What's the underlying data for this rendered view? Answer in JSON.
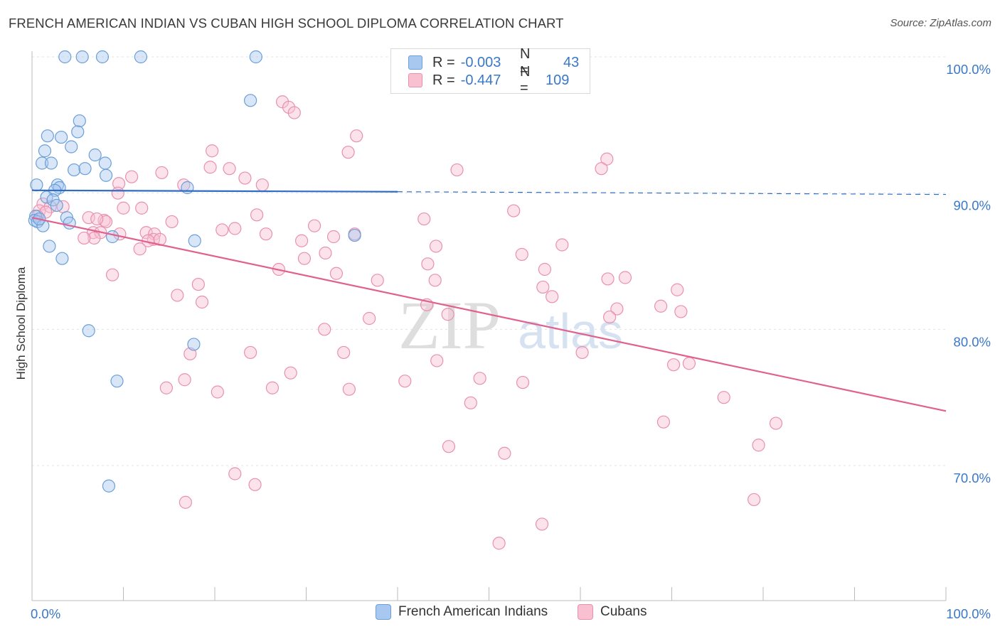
{
  "header": {
    "title": "FRENCH AMERICAN INDIAN VS CUBAN HIGH SCHOOL DIPLOMA CORRELATION CHART",
    "source": "Source: ZipAtlas.com"
  },
  "legend_top": {
    "rows": [
      {
        "r_label": "R =",
        "r_value": "-0.003",
        "n_label": "N =",
        "n_value": "43",
        "color": "#a9c8f0",
        "border": "#6a9fd8"
      },
      {
        "r_label": "R =",
        "r_value": "-0.447",
        "n_label": "N =",
        "n_value": "109",
        "color": "#f9c0d2",
        "border": "#e890b0"
      }
    ]
  },
  "legend_bottom": {
    "items": [
      {
        "label": "French American Indians",
        "color": "#a9c8f0",
        "border": "#6a9fd8"
      },
      {
        "label": "Cubans",
        "color": "#f9c0d2",
        "border": "#e890b0"
      }
    ]
  },
  "watermark": {
    "zip": "ZIP",
    "atlas": "atlas"
  },
  "chart_data": {
    "type": "scatter",
    "title": "FRENCH AMERICAN INDIAN VS CUBAN HIGH SCHOOL DIPLOMA CORRELATION CHART",
    "xlabel": "",
    "ylabel": "High School Diploma",
    "xlim": [
      0,
      100
    ],
    "ylim": [
      61,
      101.5
    ],
    "x_tick_labels": [
      "0.0%",
      "100.0%"
    ],
    "y_ticks": [
      70,
      80,
      90,
      100
    ],
    "y_tick_labels": [
      "70.0%",
      "80.0%",
      "90.0%",
      "100.0%"
    ],
    "grid": true,
    "series": [
      {
        "name": "French American Indians",
        "color": "#6a9fd8",
        "fill": "#a9c8f0",
        "points": [
          [
            3.6,
            100.0
          ],
          [
            5.5,
            100.0
          ],
          [
            7.7,
            100.0
          ],
          [
            11.9,
            100.0
          ],
          [
            24.5,
            100.0
          ],
          [
            23.9,
            96.8
          ],
          [
            5.2,
            95.3
          ],
          [
            5.0,
            94.5
          ],
          [
            1.7,
            94.2
          ],
          [
            3.2,
            94.1
          ],
          [
            4.3,
            93.4
          ],
          [
            1.4,
            93.1
          ],
          [
            6.9,
            92.8
          ],
          [
            1.1,
            92.2
          ],
          [
            2.1,
            92.2
          ],
          [
            8.0,
            92.2
          ],
          [
            4.6,
            91.7
          ],
          [
            5.8,
            91.8
          ],
          [
            8.1,
            91.3
          ],
          [
            0.5,
            90.6
          ],
          [
            2.8,
            90.6
          ],
          [
            3.0,
            90.4
          ],
          [
            17.0,
            90.4
          ],
          [
            2.5,
            90.2
          ],
          [
            1.6,
            89.7
          ],
          [
            2.3,
            89.5
          ],
          [
            2.7,
            89.1
          ],
          [
            0.4,
            88.3
          ],
          [
            0.3,
            88.0
          ],
          [
            0.6,
            87.9
          ],
          [
            3.8,
            88.2
          ],
          [
            4.1,
            87.8
          ],
          [
            1.2,
            87.6
          ],
          [
            8.8,
            86.8
          ],
          [
            17.8,
            86.5
          ],
          [
            1.9,
            86.1
          ],
          [
            3.3,
            85.2
          ],
          [
            35.3,
            86.9
          ],
          [
            6.2,
            79.9
          ],
          [
            17.7,
            78.9
          ],
          [
            9.3,
            76.2
          ],
          [
            8.4,
            68.5
          ],
          [
            0.8,
            88.1
          ]
        ]
      },
      {
        "name": "Cubans",
        "color": "#e890b0",
        "fill": "#f9c0d2",
        "points": [
          [
            27.4,
            96.7
          ],
          [
            28.1,
            96.3
          ],
          [
            28.7,
            95.9
          ],
          [
            35.5,
            94.2
          ],
          [
            19.7,
            93.1
          ],
          [
            34.6,
            93.0
          ],
          [
            62.9,
            92.5
          ],
          [
            62.3,
            91.8
          ],
          [
            46.5,
            91.7
          ],
          [
            19.5,
            91.9
          ],
          [
            21.6,
            91.8
          ],
          [
            14.2,
            91.5
          ],
          [
            10.9,
            91.2
          ],
          [
            23.3,
            91.1
          ],
          [
            9.5,
            90.7
          ],
          [
            16.6,
            90.6
          ],
          [
            25.2,
            90.6
          ],
          [
            9.4,
            90.0
          ],
          [
            1.2,
            89.2
          ],
          [
            2.0,
            89.0
          ],
          [
            3.4,
            89.0
          ],
          [
            10.0,
            88.9
          ],
          [
            12.0,
            88.9
          ],
          [
            52.7,
            88.7
          ],
          [
            0.8,
            88.7
          ],
          [
            1.5,
            88.6
          ],
          [
            0.6,
            88.3
          ],
          [
            24.6,
            88.4
          ],
          [
            6.2,
            88.2
          ],
          [
            7.9,
            88.0
          ],
          [
            8.1,
            87.9
          ],
          [
            15.3,
            87.9
          ],
          [
            42.9,
            88.1
          ],
          [
            30.9,
            87.6
          ],
          [
            20.8,
            87.3
          ],
          [
            22.2,
            87.4
          ],
          [
            6.7,
            87.1
          ],
          [
            7.5,
            87.1
          ],
          [
            9.6,
            87.0
          ],
          [
            12.5,
            87.1
          ],
          [
            13.4,
            87.0
          ],
          [
            25.6,
            87.0
          ],
          [
            35.3,
            87.0
          ],
          [
            6.8,
            86.7
          ],
          [
            5.7,
            86.7
          ],
          [
            13.3,
            86.6
          ],
          [
            14.0,
            86.6
          ],
          [
            12.7,
            86.5
          ],
          [
            29.5,
            86.5
          ],
          [
            33.0,
            86.8
          ],
          [
            11.8,
            85.9
          ],
          [
            44.2,
            86.1
          ],
          [
            58.0,
            86.2
          ],
          [
            32.1,
            85.6
          ],
          [
            29.8,
            85.2
          ],
          [
            53.6,
            85.5
          ],
          [
            43.3,
            84.8
          ],
          [
            27.0,
            84.4
          ],
          [
            56.1,
            84.4
          ],
          [
            8.8,
            84.0
          ],
          [
            33.3,
            84.1
          ],
          [
            63.0,
            83.7
          ],
          [
            64.9,
            83.8
          ],
          [
            37.8,
            83.6
          ],
          [
            44.1,
            83.6
          ],
          [
            18.2,
            83.3
          ],
          [
            55.9,
            83.1
          ],
          [
            70.6,
            82.9
          ],
          [
            15.9,
            82.5
          ],
          [
            56.9,
            82.4
          ],
          [
            18.6,
            82.0
          ],
          [
            43.2,
            81.8
          ],
          [
            68.8,
            81.7
          ],
          [
            64.0,
            81.5
          ],
          [
            71.0,
            81.3
          ],
          [
            45.5,
            81.1
          ],
          [
            36.9,
            80.8
          ],
          [
            63.2,
            80.9
          ],
          [
            32.0,
            80.0
          ],
          [
            17.3,
            78.2
          ],
          [
            23.9,
            78.3
          ],
          [
            34.1,
            78.3
          ],
          [
            60.2,
            78.3
          ],
          [
            44.3,
            77.7
          ],
          [
            70.2,
            77.4
          ],
          [
            71.9,
            77.5
          ],
          [
            28.3,
            76.8
          ],
          [
            49.0,
            76.4
          ],
          [
            16.7,
            76.3
          ],
          [
            40.8,
            76.2
          ],
          [
            53.7,
            76.1
          ],
          [
            14.7,
            75.7
          ],
          [
            26.3,
            75.7
          ],
          [
            34.7,
            75.6
          ],
          [
            20.3,
            75.4
          ],
          [
            75.7,
            75.0
          ],
          [
            48.0,
            74.6
          ],
          [
            69.1,
            73.2
          ],
          [
            81.4,
            73.1
          ],
          [
            45.6,
            71.4
          ],
          [
            51.7,
            70.9
          ],
          [
            79.5,
            71.5
          ],
          [
            22.2,
            69.4
          ],
          [
            24.4,
            68.6
          ],
          [
            16.8,
            67.3
          ],
          [
            79.0,
            67.5
          ],
          [
            55.8,
            65.7
          ],
          [
            51.1,
            64.3
          ],
          [
            7.1,
            88.1
          ]
        ]
      }
    ],
    "trend_lines": [
      {
        "series": "French American Indians",
        "x": [
          0,
          40,
          100
        ],
        "y": [
          90.2,
          90.1,
          89.9
        ],
        "solid_until": 40
      },
      {
        "series": "Cubans",
        "x": [
          0,
          100
        ],
        "y": [
          88.2,
          74.0
        ]
      }
    ]
  }
}
